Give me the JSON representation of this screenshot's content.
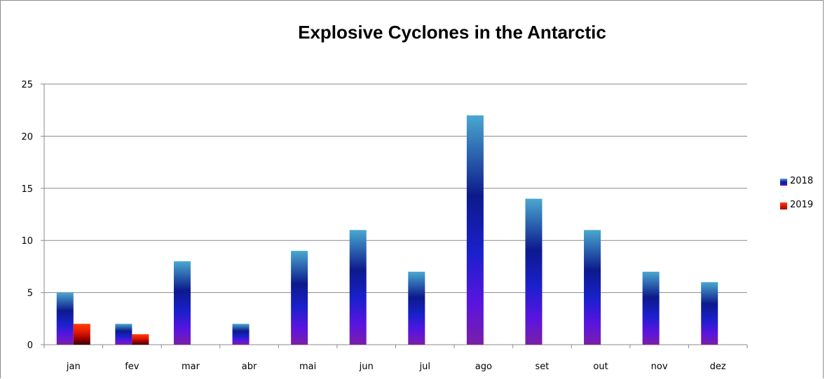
{
  "chart_data": {
    "type": "bar",
    "title": "Explosive Cyclones in the Antarctic",
    "categories": [
      "jan",
      "fev",
      "mar",
      "abr",
      "mai",
      "jun",
      "jul",
      "ago",
      "set",
      "out",
      "nov",
      "dez"
    ],
    "series": [
      {
        "name": "2018",
        "values": [
          5,
          2,
          8,
          2,
          9,
          11,
          7,
          22,
          14,
          11,
          7,
          6
        ],
        "color": "#1a1acc"
      },
      {
        "name": "2019",
        "values": [
          2,
          1,
          0,
          0,
          0,
          0,
          0,
          0,
          0,
          0,
          0,
          0
        ],
        "color": "#e02000"
      }
    ],
    "ylim": [
      0,
      25
    ],
    "yticks": [
      "0",
      "5",
      "10",
      "15",
      "20",
      "25"
    ],
    "grid": true,
    "legend": "right"
  }
}
